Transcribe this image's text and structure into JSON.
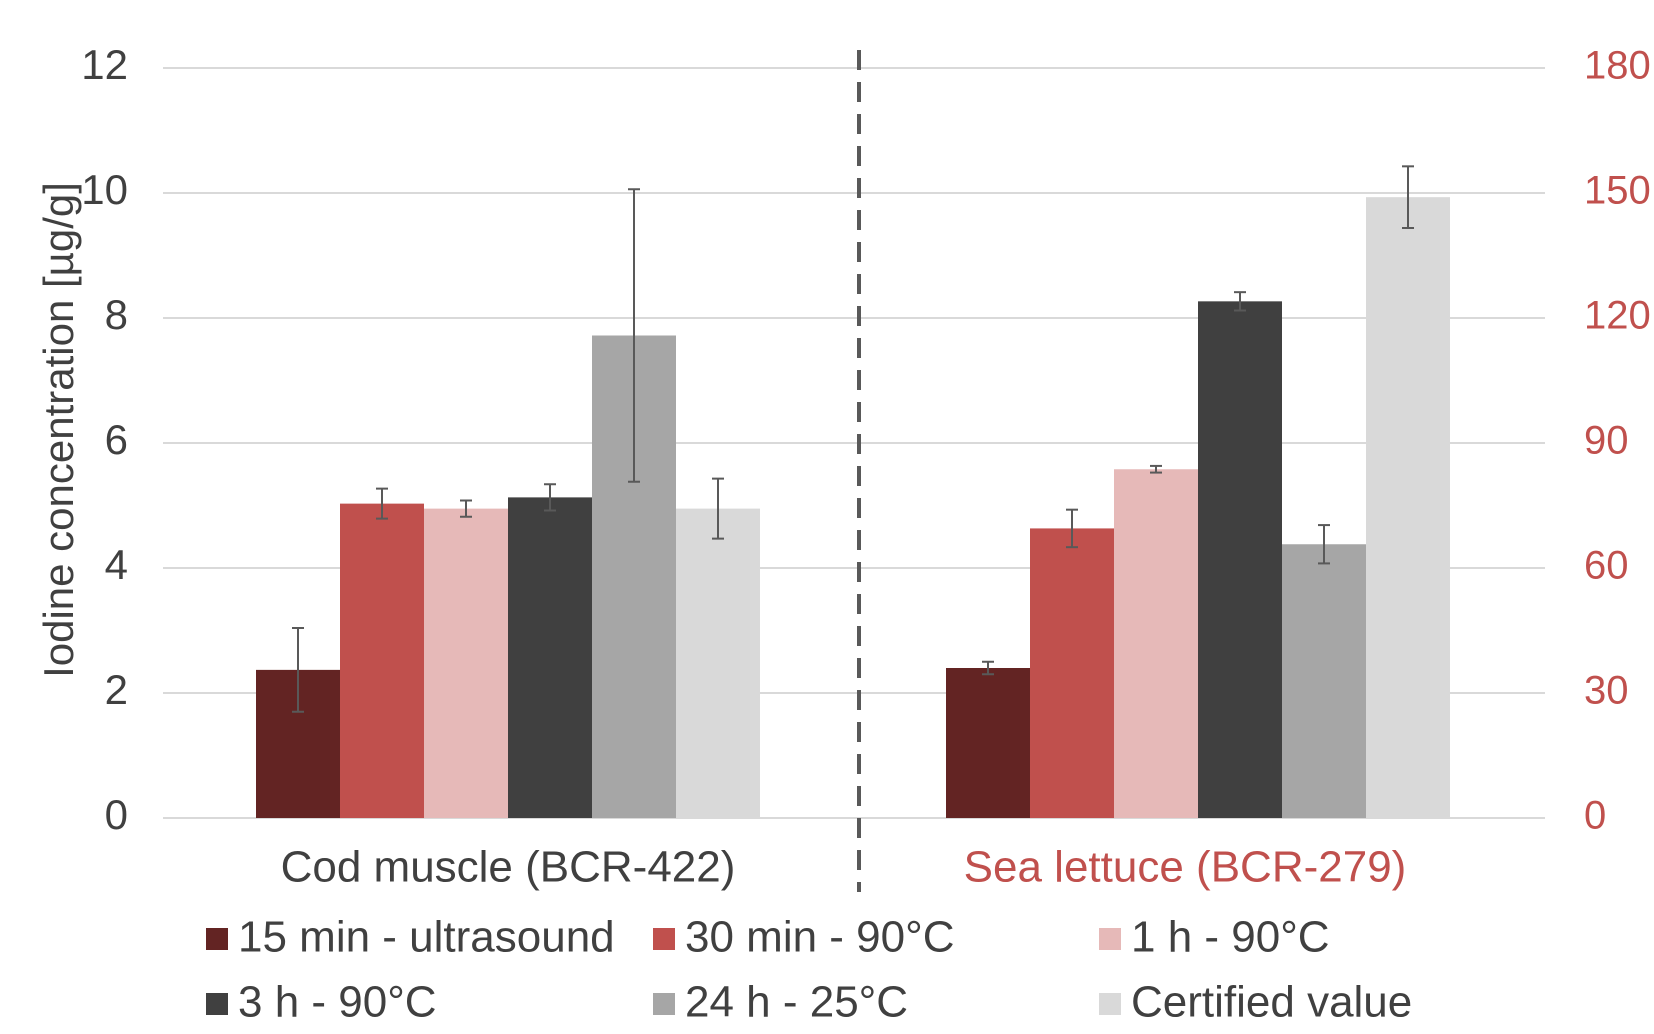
{
  "chart_data": {
    "type": "bar",
    "xlabel": "",
    "ylabel": "Iodine concentration [µg/g]",
    "ylim": [
      0,
      12
    ],
    "yticks": [
      "0",
      "2",
      "4",
      "6",
      "8",
      "10",
      "12"
    ],
    "y2lim": [
      0,
      180
    ],
    "y2ticks": [
      "0",
      "30",
      "60",
      "90",
      "120",
      "150",
      "180"
    ],
    "y2_color": "#c0504d",
    "grid": true,
    "legend_position": "bottom",
    "groups": [
      {
        "label": "Cod muscle (BCR-422)",
        "label_color": "#404040",
        "axis": "left",
        "values": [
          2.37,
          5.03,
          4.95,
          5.13,
          7.72,
          4.95
        ],
        "errors": [
          0.67,
          0.24,
          0.13,
          0.21,
          2.34,
          0.48
        ]
      },
      {
        "label": "Sea lettuce (BCR-279)",
        "label_color": "#c0504d",
        "axis": "right",
        "values": [
          36,
          69.5,
          83.7,
          124,
          65.7,
          149
        ],
        "errors": [
          1.5,
          4.5,
          0.8,
          2.2,
          4.6,
          7.4
        ]
      }
    ],
    "series": [
      {
        "name": "15 min - ultrasound",
        "color": "#632423"
      },
      {
        "name": "30 min - 90°C",
        "color": "#c0504d"
      },
      {
        "name": "1 h - 90°C",
        "color": "#e6b9b8"
      },
      {
        "name": "3 h - 90°C",
        "color": "#404040"
      },
      {
        "name": "24 h - 25°C",
        "color": "#a6a6a6"
      },
      {
        "name": "Certified value",
        "color": "#d9d9d9"
      }
    ]
  }
}
